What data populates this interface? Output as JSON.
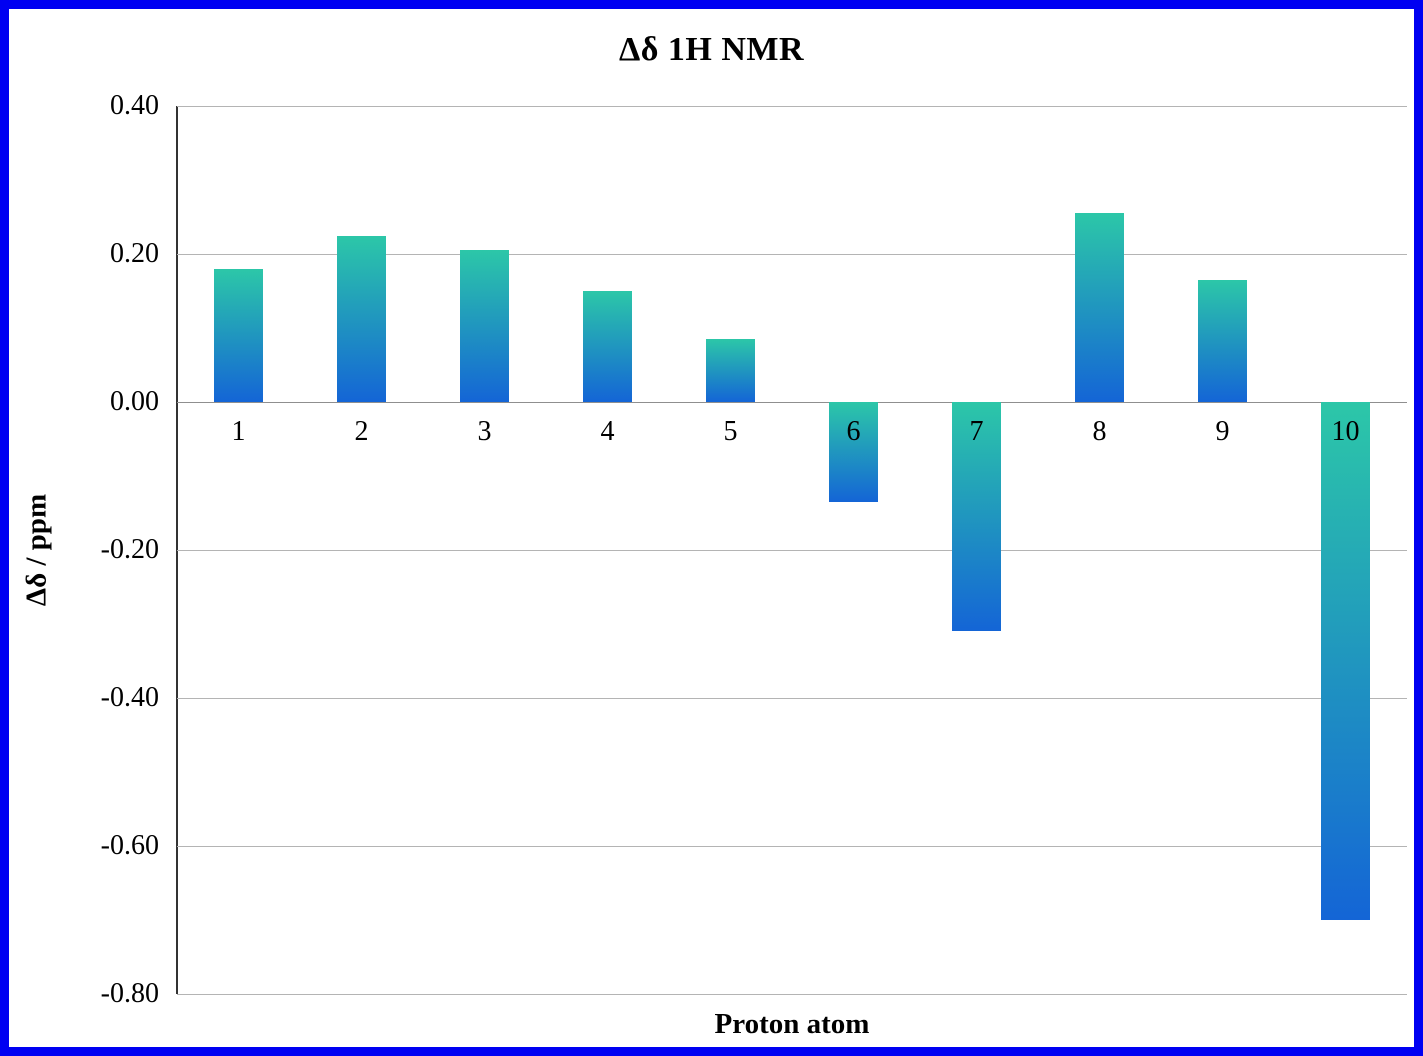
{
  "chart_data": {
    "type": "bar",
    "title": "Δδ 1H NMR",
    "xlabel": "Proton atom",
    "ylabel": "Δδ / ppm",
    "categories": [
      "1",
      "2",
      "3",
      "4",
      "5",
      "6",
      "7",
      "8",
      "9",
      "10"
    ],
    "values": [
      0.18,
      0.225,
      0.205,
      0.15,
      0.085,
      -0.135,
      -0.31,
      0.255,
      0.165,
      -0.7
    ],
    "ylim": [
      -0.8,
      0.4
    ],
    "ytick_step": 0.2,
    "ytick_labels": [
      "0.40",
      "0.20",
      "0.00",
      "-0.20",
      "-0.40",
      "-0.60",
      "-0.80"
    ],
    "grid": true,
    "legend_position": "none",
    "colors": {
      "bar_gradient_top": "#2cc7a8",
      "bar_gradient_bottom": "#1465d6",
      "gridline": "#b4b4b4",
      "axis_line": "#333333",
      "frame_border": "#0000f2",
      "background": "#ffffff",
      "text": "#000000"
    }
  }
}
